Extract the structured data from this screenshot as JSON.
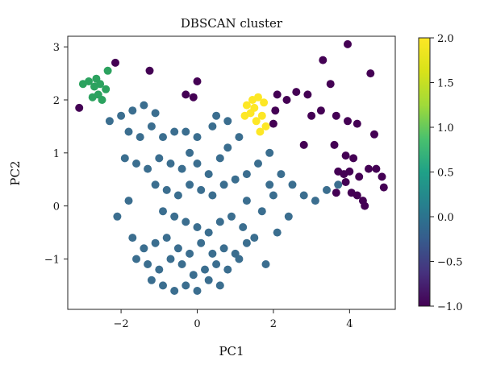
{
  "chart_data": {
    "type": "scatter",
    "title": "DBSCAN cluster",
    "xlabel": "PC1",
    "ylabel": "PC2",
    "xlim": [
      -3.4,
      5.2
    ],
    "ylim": [
      -1.95,
      3.2
    ],
    "xticks": [
      -2,
      0,
      2,
      4
    ],
    "yticks": [
      -1,
      0,
      1,
      2,
      3
    ],
    "grid": false,
    "colorbar": {
      "min": -1.0,
      "max": 2.0,
      "ticks": [
        2.0,
        1.5,
        1.0,
        0.5,
        0.0,
        -0.5,
        -1.0
      ],
      "tick_labels": [
        "2.0",
        "1.5",
        "1.0",
        "0.5",
        "0.0",
        "−0.5",
        "−1.0"
      ],
      "colormap": "viridis",
      "placement": "right"
    },
    "clusters": [
      {
        "label": 0,
        "color": "#3b6e8f",
        "points": [
          [
            -1.8,
            1.4
          ],
          [
            -1.5,
            1.3
          ],
          [
            -1.2,
            1.5
          ],
          [
            -0.9,
            1.3
          ],
          [
            -0.6,
            1.4
          ],
          [
            -0.3,
            1.4
          ],
          [
            0.0,
            1.3
          ],
          [
            0.4,
            1.5
          ],
          [
            -1.9,
            0.9
          ],
          [
            -1.6,
            0.8
          ],
          [
            -1.3,
            0.7
          ],
          [
            -1.0,
            0.9
          ],
          [
            -0.7,
            0.8
          ],
          [
            -0.4,
            0.7
          ],
          [
            0.0,
            0.8
          ],
          [
            0.3,
            0.6
          ],
          [
            0.6,
            0.9
          ],
          [
            -1.1,
            0.4
          ],
          [
            -0.8,
            0.3
          ],
          [
            -0.5,
            0.2
          ],
          [
            -0.2,
            0.4
          ],
          [
            0.1,
            0.3
          ],
          [
            0.4,
            0.2
          ],
          [
            0.7,
            0.4
          ],
          [
            1.0,
            0.5
          ],
          [
            1.3,
            0.6
          ],
          [
            1.6,
            0.8
          ],
          [
            1.9,
            1.0
          ],
          [
            2.2,
            0.6
          ],
          [
            2.5,
            0.4
          ],
          [
            2.8,
            0.2
          ],
          [
            3.1,
            0.1
          ],
          [
            3.4,
            0.3
          ],
          [
            3.7,
            0.4
          ],
          [
            1.3,
            0.1
          ],
          [
            1.7,
            -0.1
          ],
          [
            2.0,
            0.2
          ],
          [
            -0.9,
            -0.1
          ],
          [
            -0.6,
            -0.2
          ],
          [
            -0.3,
            -0.3
          ],
          [
            0.0,
            -0.4
          ],
          [
            0.3,
            -0.5
          ],
          [
            0.6,
            -0.3
          ],
          [
            0.9,
            -0.2
          ],
          [
            1.2,
            -0.4
          ],
          [
            1.5,
            -0.6
          ],
          [
            -1.7,
            -0.6
          ],
          [
            -1.4,
            -0.8
          ],
          [
            -1.1,
            -0.7
          ],
          [
            -0.8,
            -0.6
          ],
          [
            -0.5,
            -0.8
          ],
          [
            -0.2,
            -0.9
          ],
          [
            0.1,
            -0.7
          ],
          [
            0.4,
            -0.9
          ],
          [
            0.7,
            -0.8
          ],
          [
            1.0,
            -0.9
          ],
          [
            1.3,
            -0.7
          ],
          [
            -1.6,
            -1.0
          ],
          [
            -1.3,
            -1.1
          ],
          [
            -1.0,
            -1.2
          ],
          [
            -0.7,
            -1.0
          ],
          [
            -0.4,
            -1.1
          ],
          [
            -0.1,
            -1.3
          ],
          [
            0.2,
            -1.2
          ],
          [
            0.5,
            -1.1
          ],
          [
            0.8,
            -1.2
          ],
          [
            1.1,
            -1.0
          ],
          [
            -1.2,
            -1.4
          ],
          [
            -0.9,
            -1.5
          ],
          [
            -0.6,
            -1.6
          ],
          [
            -0.3,
            -1.5
          ],
          [
            0.0,
            -1.6
          ],
          [
            0.3,
            -1.4
          ],
          [
            0.6,
            -1.5
          ],
          [
            -2.3,
            1.6
          ],
          [
            -2.0,
            1.7
          ],
          [
            -1.7,
            1.8
          ],
          [
            -1.4,
            1.9
          ],
          [
            -1.1,
            1.75
          ],
          [
            0.5,
            1.7
          ],
          [
            0.8,
            1.6
          ],
          [
            1.1,
            1.3
          ],
          [
            -2.1,
            -0.2
          ],
          [
            -1.8,
            0.1
          ],
          [
            2.4,
            -0.2
          ],
          [
            2.1,
            -0.5
          ],
          [
            1.8,
            -1.1
          ],
          [
            1.9,
            0.4
          ],
          [
            -0.2,
            1.0
          ],
          [
            0.8,
            1.1
          ]
        ]
      },
      {
        "label": 1,
        "color": "#2ca25f",
        "points": [
          [
            -3.0,
            2.3
          ],
          [
            -2.85,
            2.35
          ],
          [
            -2.7,
            2.25
          ],
          [
            -2.6,
            2.1
          ],
          [
            -2.75,
            2.05
          ],
          [
            -2.55,
            2.3
          ],
          [
            -2.4,
            2.2
          ],
          [
            -2.5,
            2.0
          ],
          [
            -2.35,
            2.55
          ],
          [
            -2.65,
            2.4
          ]
        ]
      },
      {
        "label": 2,
        "color": "#fde725",
        "points": [
          [
            1.3,
            1.9
          ],
          [
            1.45,
            2.0
          ],
          [
            1.6,
            2.05
          ],
          [
            1.75,
            1.95
          ],
          [
            1.25,
            1.7
          ],
          [
            1.4,
            1.75
          ],
          [
            1.55,
            1.6
          ],
          [
            1.7,
            1.7
          ],
          [
            1.5,
            1.85
          ],
          [
            1.8,
            1.5
          ],
          [
            1.65,
            1.4
          ]
        ]
      },
      {
        "label": -1,
        "color": "#440154",
        "points": [
          [
            -2.15,
            2.7
          ],
          [
            -1.25,
            2.55
          ],
          [
            -0.3,
            2.1
          ],
          [
            -0.1,
            2.05
          ],
          [
            0.0,
            2.35
          ],
          [
            -3.1,
            1.85
          ],
          [
            2.1,
            2.1
          ],
          [
            2.35,
            2.0
          ],
          [
            2.6,
            2.15
          ],
          [
            2.9,
            2.1
          ],
          [
            3.3,
            2.75
          ],
          [
            3.5,
            2.3
          ],
          [
            3.95,
            3.05
          ],
          [
            4.55,
            2.5
          ],
          [
            3.0,
            1.7
          ],
          [
            3.25,
            1.8
          ],
          [
            3.65,
            1.7
          ],
          [
            3.95,
            1.6
          ],
          [
            4.2,
            1.55
          ],
          [
            4.65,
            1.35
          ],
          [
            2.8,
            1.15
          ],
          [
            3.6,
            1.15
          ],
          [
            2.05,
            1.8
          ],
          [
            2.0,
            1.55
          ],
          [
            3.7,
            0.65
          ],
          [
            3.85,
            0.6
          ],
          [
            4.0,
            0.65
          ],
          [
            3.9,
            0.45
          ],
          [
            4.05,
            0.25
          ],
          [
            4.2,
            0.2
          ],
          [
            4.35,
            0.1
          ],
          [
            4.5,
            0.7
          ],
          [
            4.7,
            0.7
          ],
          [
            4.85,
            0.55
          ],
          [
            4.9,
            0.35
          ],
          [
            3.65,
            0.25
          ],
          [
            4.25,
            0.55
          ],
          [
            4.1,
            0.9
          ],
          [
            3.9,
            0.95
          ],
          [
            4.4,
            0.0
          ]
        ]
      }
    ]
  }
}
